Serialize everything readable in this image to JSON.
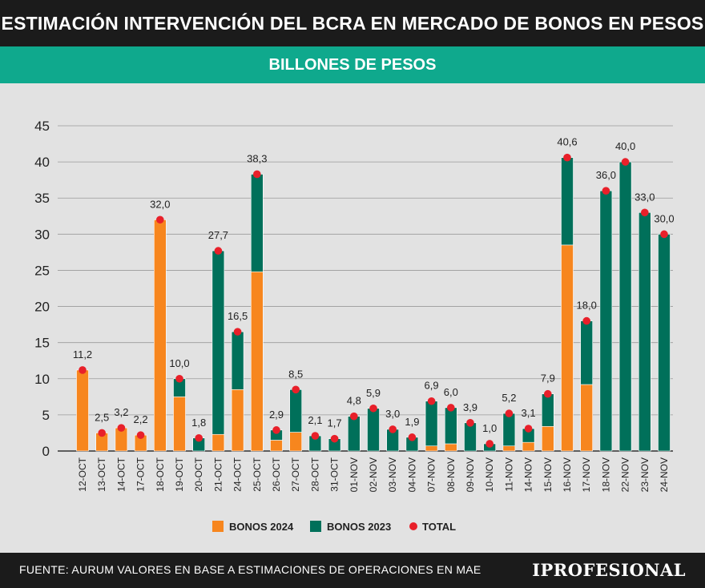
{
  "header": {
    "title": "ESTIMACIÓN INTERVENCIÓN DEL BCRA EN MERCADO DE BONOS EN PESOS",
    "subtitle": "BILLONES DE PESOS"
  },
  "colors": {
    "bonos_2024": "#f7861e",
    "bonos_2023": "#00705a",
    "total": "#e8202a",
    "header_bg": "#1b1b1b",
    "subtitle_bg": "#0fa98d",
    "chart_bg": "#e2e2e2"
  },
  "chart_data": {
    "type": "bar",
    "stacked": true,
    "categories": [
      "12-OCT",
      "13-OCT",
      "14-OCT",
      "17-OCT",
      "18-OCT",
      "19-OCT",
      "20-OCT",
      "21-OCT",
      "24-OCT",
      "25-OCT",
      "26-OCT",
      "27-OCT",
      "28-OCT",
      "31-OCT",
      "01-NOV",
      "02-NOV",
      "03-NOV",
      "04-NOV",
      "07-NOV",
      "08-NOV",
      "09-NOV",
      "10-NOV",
      "11-NOV",
      "14-NOV",
      "15-NOV",
      "16-NOV",
      "17-NOV",
      "18-NOV",
      "22-NOV",
      "23-NOV",
      "24-NOV"
    ],
    "series": [
      {
        "name": "BONOS 2024",
        "values": [
          11.2,
          2.5,
          3.2,
          2.2,
          32.0,
          7.5,
          0,
          2.3,
          8.5,
          24.8,
          1.5,
          2.6,
          0,
          0,
          0,
          0,
          0,
          0,
          0.7,
          1.0,
          0,
          0,
          0.7,
          1.2,
          3.4,
          28.5,
          9.2,
          0,
          0,
          0,
          0
        ]
      },
      {
        "name": "BONOS 2023",
        "values": [
          0,
          0,
          0,
          0,
          0,
          2.5,
          1.8,
          25.4,
          8.0,
          13.5,
          1.4,
          5.9,
          2.1,
          1.7,
          4.8,
          5.9,
          3.0,
          1.9,
          6.2,
          5.0,
          3.9,
          1.0,
          4.5,
          1.9,
          4.5,
          12.1,
          8.8,
          36.0,
          40.0,
          33.0,
          30.0
        ]
      }
    ],
    "totals": {
      "name": "TOTAL",
      "values": [
        11.2,
        2.5,
        3.2,
        2.2,
        32.0,
        10.0,
        1.8,
        27.7,
        16.5,
        38.3,
        2.9,
        8.5,
        2.1,
        1.7,
        4.8,
        5.9,
        3.0,
        1.9,
        6.9,
        6.0,
        3.9,
        1.0,
        5.2,
        3.1,
        7.9,
        40.6,
        18.0,
        36.0,
        40.0,
        33.0,
        30.0
      ],
      "labels": [
        "11,2",
        "2,5",
        "3,2",
        "2,2",
        "32,0",
        "10,0",
        "1,8",
        "27,7",
        "16,5",
        "38,3",
        "2,9",
        "8,5",
        "2,1",
        "1,7",
        "4,8",
        "5,9",
        "3,0",
        "1,9",
        "6,9",
        "6,0",
        "3,9",
        "1,0",
        "5,2",
        "3,1",
        "7,9",
        "40,6",
        "18,0",
        "36,0",
        "40,0",
        "33,0",
        "30,0"
      ]
    },
    "yticks": [
      "0",
      "5",
      "10",
      "15",
      "20",
      "25",
      "30",
      "35",
      "40",
      "45"
    ],
    "ylim": [
      0,
      45
    ],
    "grid": true,
    "legend_position": "bottom-center",
    "legend": [
      "BONOS 2024",
      "BONOS 2023",
      "TOTAL"
    ]
  },
  "footer": {
    "source": "FUENTE: AURUM VALORES EN BASE A ESTIMACIONES DE OPERACIONES EN MAE",
    "logo": "IPROFESIONAL"
  }
}
